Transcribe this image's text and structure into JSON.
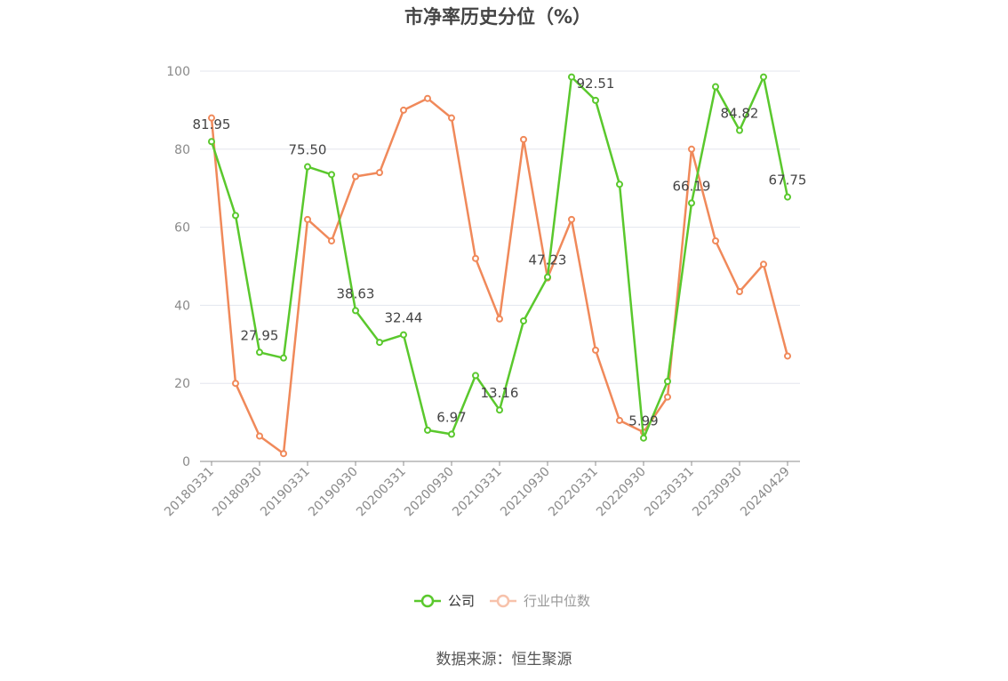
{
  "chart_data": {
    "type": "line",
    "title": "市净率历史分位（%）",
    "xlabel": "",
    "ylabel": "",
    "ylim": [
      0,
      100
    ],
    "y_ticks": [
      0,
      20,
      40,
      60,
      80,
      100
    ],
    "grid": true,
    "legend_position": "bottom",
    "x": [
      "20180331",
      "20180630",
      "20180930",
      "20181231",
      "20190331",
      "20190630",
      "20190930",
      "20191231",
      "20200331",
      "20200630",
      "20200930",
      "20201231",
      "20210331",
      "20210630",
      "20210930",
      "20211231",
      "20220331",
      "20220630",
      "20220930",
      "20221231",
      "20230331",
      "20230630",
      "20230930",
      "20231231",
      "20240429"
    ],
    "x_tick_labels": [
      "20180331",
      "20180930",
      "20190331",
      "20190930",
      "20200331",
      "20200930",
      "20210331",
      "20210930",
      "20220331",
      "20220930",
      "20230331",
      "20230930",
      "20240429"
    ],
    "series": [
      {
        "name": "公司",
        "color": "#5ac82d",
        "values": [
          81.95,
          63.0,
          27.95,
          26.5,
          75.5,
          73.5,
          38.63,
          30.5,
          32.44,
          8.0,
          6.97,
          22.0,
          13.16,
          36.0,
          47.23,
          98.5,
          92.51,
          71.0,
          5.99,
          20.5,
          66.19,
          96.0,
          84.82,
          98.5,
          67.75
        ],
        "labels": {
          "0": "81.95",
          "2": "27.95",
          "4": "75.50",
          "6": "38.63",
          "8": "32.44",
          "10": "6.97",
          "12": "13.16",
          "14": "47.23",
          "16": "92.51",
          "18": "5.99",
          "20": "66.19",
          "22": "84.82",
          "24": "67.75"
        }
      },
      {
        "name": "行业中位数",
        "color": "#f0895a",
        "values": [
          88.0,
          20.0,
          6.5,
          2.0,
          62.0,
          56.5,
          73.0,
          74.0,
          90.0,
          93.0,
          88.0,
          52.0,
          36.5,
          82.5,
          47.0,
          62.0,
          28.5,
          10.5,
          7.5,
          16.5,
          80.0,
          56.5,
          43.5,
          50.5,
          27.0
        ]
      }
    ],
    "source": "数据来源：恒生聚源"
  }
}
